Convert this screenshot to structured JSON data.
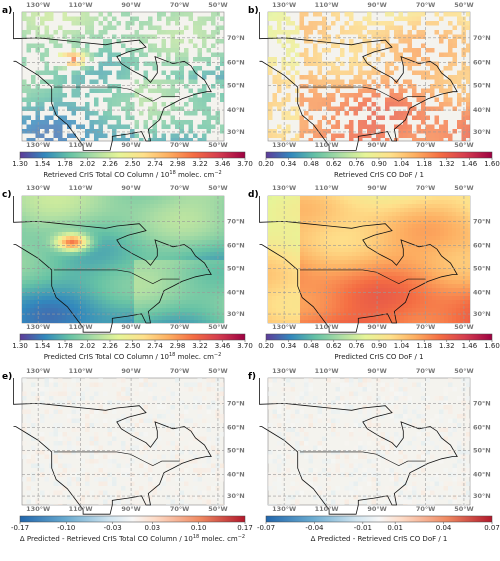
{
  "map": {
    "lon_labels": [
      "130°W",
      "110°W",
      "90°W",
      "70°W",
      "50°W"
    ],
    "lat_labels": [
      "70°N",
      "60°N",
      "50°N",
      "40°N",
      "30°N"
    ]
  },
  "panels": [
    {
      "label": "a)",
      "colorbar": {
        "lim": [
          1.3,
          3.7
        ],
        "ticks": [
          {
            "value": 1.3,
            "label": "1.30"
          },
          {
            "value": 1.54,
            "label": "1.54"
          },
          {
            "value": 1.78,
            "label": "1.78"
          },
          {
            "value": 2.02,
            "label": "2.02"
          },
          {
            "value": 2.26,
            "label": "2.26"
          },
          {
            "value": 2.5,
            "label": "2.50"
          },
          {
            "value": 2.74,
            "label": "2.74"
          },
          {
            "value": 2.98,
            "label": "2.98"
          },
          {
            "value": 3.22,
            "label": "3.22"
          },
          {
            "value": 3.46,
            "label": "3.46"
          },
          {
            "value": 3.7,
            "label": "3.70"
          }
        ],
        "title": [
          "Retrieved CrIS Total CO Column / 10",
          "18",
          " molec. cm",
          "−2"
        ]
      }
    },
    {
      "label": "b)",
      "colorbar": {
        "lim": [
          0.2,
          1.6
        ],
        "ticks": [
          {
            "value": 0.2,
            "label": "0.20"
          },
          {
            "value": 0.34,
            "label": "0.34"
          },
          {
            "value": 0.48,
            "label": "0.48"
          },
          {
            "value": 0.62,
            "label": "0.62"
          },
          {
            "value": 0.76,
            "label": "0.76"
          },
          {
            "value": 0.9,
            "label": "0.90"
          },
          {
            "value": 1.04,
            "label": "1.04"
          },
          {
            "value": 1.18,
            "label": "1.18"
          },
          {
            "value": 1.32,
            "label": "1.32"
          },
          {
            "value": 1.46,
            "label": "1.46"
          },
          {
            "value": 1.6,
            "label": "1.60"
          }
        ],
        "title": [
          "Retrieved CrIS CO DoF / 1"
        ]
      }
    },
    {
      "label": "c)",
      "colorbar": {
        "lim": [
          1.3,
          3.7
        ],
        "ticks": [
          {
            "value": 1.3,
            "label": "1.30"
          },
          {
            "value": 1.54,
            "label": "1.54"
          },
          {
            "value": 1.78,
            "label": "1.78"
          },
          {
            "value": 2.02,
            "label": "2.02"
          },
          {
            "value": 2.26,
            "label": "2.26"
          },
          {
            "value": 2.5,
            "label": "2.50"
          },
          {
            "value": 2.74,
            "label": "2.74"
          },
          {
            "value": 2.98,
            "label": "2.98"
          },
          {
            "value": 3.22,
            "label": "3.22"
          },
          {
            "value": 3.46,
            "label": "3.46"
          },
          {
            "value": 3.7,
            "label": "3.70"
          }
        ],
        "title": [
          "Predicted CrIS Total CO Column / 10",
          "18",
          " molec. cm",
          "−2"
        ]
      }
    },
    {
      "label": "d)",
      "colorbar": {
        "lim": [
          0.2,
          1.6
        ],
        "ticks": [
          {
            "value": 0.2,
            "label": "0.20"
          },
          {
            "value": 0.34,
            "label": "0.34"
          },
          {
            "value": 0.48,
            "label": "0.48"
          },
          {
            "value": 0.62,
            "label": "0.62"
          },
          {
            "value": 0.76,
            "label": "0.76"
          },
          {
            "value": 0.9,
            "label": "0.90"
          },
          {
            "value": 1.04,
            "label": "1.04"
          },
          {
            "value": 1.18,
            "label": "1.18"
          },
          {
            "value": 1.32,
            "label": "1.32"
          },
          {
            "value": 1.46,
            "label": "1.46"
          },
          {
            "value": 1.6,
            "label": "1.60"
          }
        ],
        "title": [
          "Predicted CrIS CO DoF / 1"
        ]
      }
    },
    {
      "label": "e)",
      "colorbar": {
        "lim": [
          -0.17,
          0.17
        ],
        "ticks": [
          {
            "value": -0.17,
            "label": "-0.17"
          },
          {
            "value": -0.1,
            "label": "-0.10"
          },
          {
            "value": -0.03,
            "label": "-0.03"
          },
          {
            "value": 0.03,
            "label": "0.03"
          },
          {
            "value": 0.1,
            "label": "0.10"
          },
          {
            "value": 0.17,
            "label": "0.17"
          }
        ],
        "title": [
          "Δ Predicted - Retrieved CrIS Total CO Column / 10",
          "18",
          " molec. cm",
          "−2"
        ]
      }
    },
    {
      "label": "f)",
      "colorbar": {
        "lim": [
          -0.07,
          0.07
        ],
        "ticks": [
          {
            "value": -0.07,
            "label": "-0.07"
          },
          {
            "value": -0.04,
            "label": "-0.04"
          },
          {
            "value": -0.01,
            "label": "-0.01"
          },
          {
            "value": 0.01,
            "label": "0.01"
          },
          {
            "value": 0.04,
            "label": "0.04"
          },
          {
            "value": 0.07,
            "label": "0.07"
          }
        ],
        "title": [
          "Δ Predicted - Retrieved CrIS CO DoF / 1"
        ]
      }
    }
  ]
}
